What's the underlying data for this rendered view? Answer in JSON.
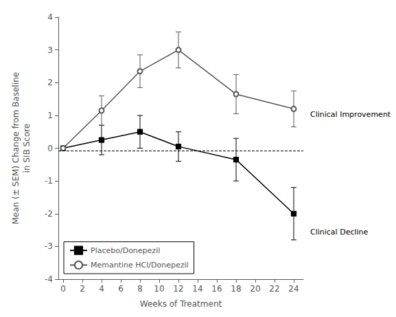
{
  "chart_data": {
    "type": "line",
    "xlabel": "Weeks of Treatment",
    "ylabel": "Mean (± SEM) Change from Baseline\nin SIB Score",
    "x": [
      0,
      4,
      8,
      12,
      18,
      24
    ],
    "series": [
      {
        "name": "Placebo/Donepezil",
        "color": "#000000",
        "marker": "square",
        "line_style": "solid",
        "values": [
          0.0,
          0.25,
          0.5,
          0.05,
          -0.35,
          -2.0
        ],
        "errors": [
          0.0,
          0.45,
          0.5,
          0.45,
          0.65,
          0.8
        ]
      },
      {
        "name": "Memantine HCl/Donepezil",
        "color": "#555555",
        "marker": "open_circle",
        "line_style": "solid",
        "values": [
          0.0,
          1.15,
          2.35,
          3.0,
          1.65,
          1.2
        ],
        "errors": [
          0.0,
          0.45,
          0.5,
          0.55,
          0.6,
          0.55
        ]
      }
    ],
    "xlim": [
      -0.5,
      25.0
    ],
    "ylim": [
      -4,
      4
    ],
    "xticks": [
      0,
      2,
      4,
      6,
      8,
      10,
      12,
      14,
      16,
      18,
      20,
      22,
      24
    ],
    "yticks": [
      -4,
      -3,
      -2,
      -1,
      0,
      1,
      2,
      3,
      4
    ],
    "reference_line": {
      "y": -0.08,
      "color": "#000000",
      "line_style": "dashed"
    },
    "annotations": [
      "Clinical Improvement",
      "Clinical Decline"
    ],
    "legend": "lower left",
    "grid": false
  }
}
